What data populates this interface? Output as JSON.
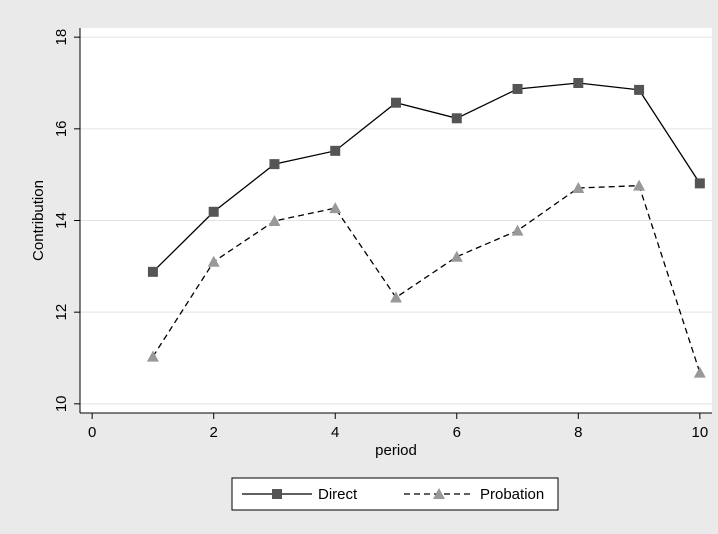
{
  "chart_data": {
    "type": "line",
    "title": "",
    "xlabel": "period",
    "ylabel": "Contribution",
    "xlim": [
      -0.2,
      10.2
    ],
    "ylim": [
      9.8,
      18.2
    ],
    "x_ticks": [
      0,
      2,
      4,
      6,
      8,
      10
    ],
    "x_tick_labels": [
      "0",
      "2",
      "4",
      "6",
      "8",
      "10"
    ],
    "y_ticks": [
      10,
      12,
      14,
      16,
      18
    ],
    "y_tick_labels": [
      "10",
      "12",
      "14",
      "16",
      "18"
    ],
    "grid": "horizontal",
    "legend_position": "bottom",
    "x": [
      1,
      2,
      3,
      4,
      5,
      6,
      7,
      8,
      9,
      10
    ],
    "series": [
      {
        "name": "Direct",
        "values": [
          12.88,
          14.19,
          15.23,
          15.52,
          16.57,
          16.23,
          16.87,
          17.0,
          16.85,
          14.81
        ],
        "color": "#555555",
        "line_style": "solid",
        "marker": "square"
      },
      {
        "name": "Probation",
        "values": [
          11.03,
          13.1,
          13.99,
          14.27,
          12.32,
          13.21,
          13.78,
          14.71,
          14.76,
          10.68
        ],
        "color": "#999999",
        "line_style": "dashed",
        "marker": "triangle"
      }
    ]
  }
}
